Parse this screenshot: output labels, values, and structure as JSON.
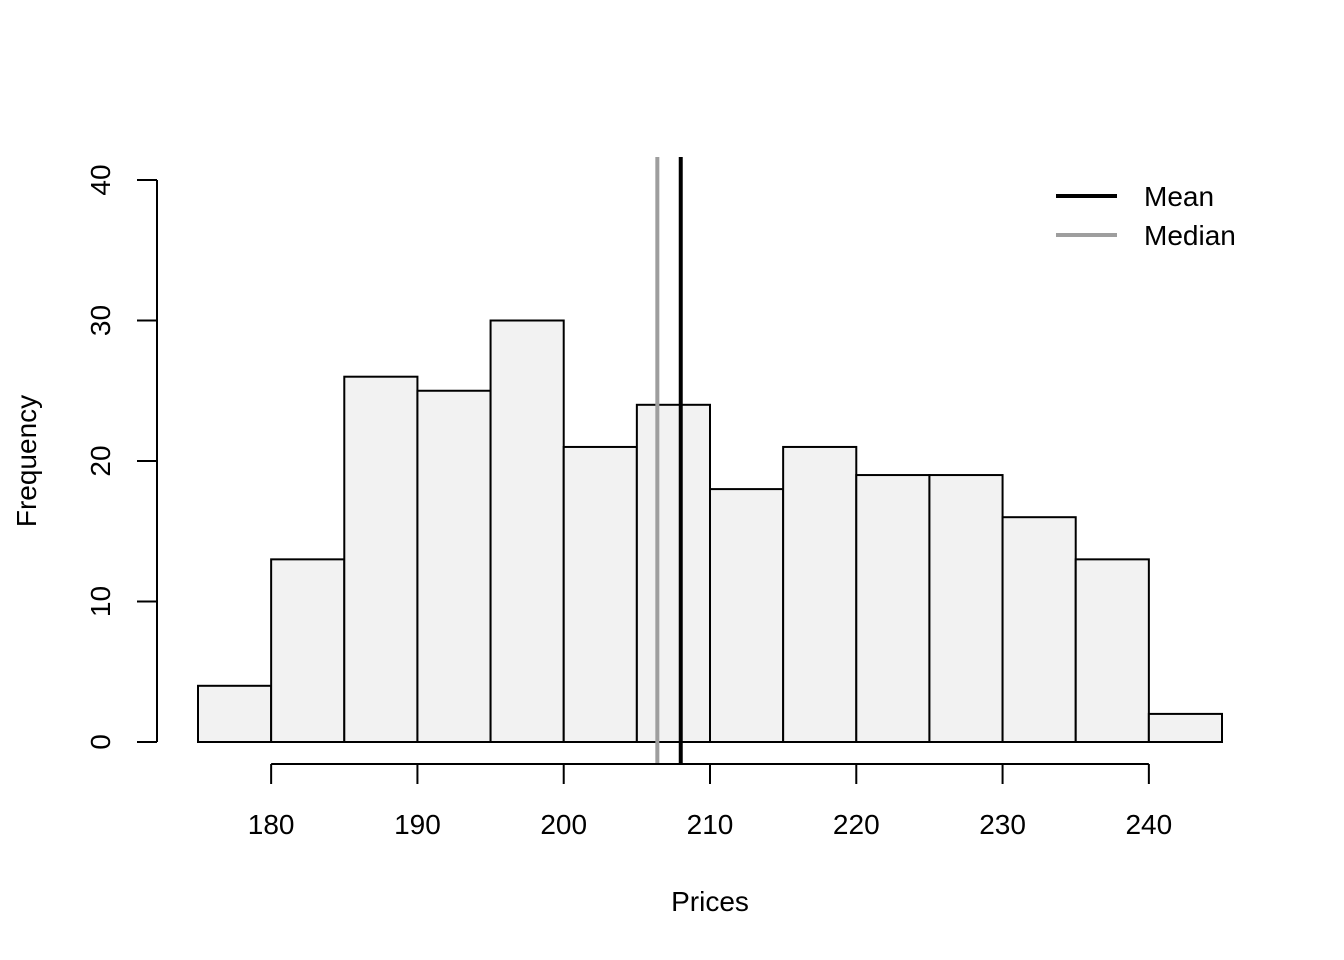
{
  "chart_data": {
    "type": "histogram",
    "xlabel": "Prices",
    "ylabel": "Frequency",
    "bin_edges": [
      175,
      180,
      185,
      190,
      195,
      200,
      205,
      210,
      215,
      220,
      225,
      230,
      235,
      240,
      245
    ],
    "counts": [
      4,
      13,
      26,
      25,
      30,
      21,
      24,
      18,
      21,
      19,
      19,
      16,
      13,
      2
    ],
    "bar_color": "#f2f2f2",
    "bar_stroke": "#000000",
    "x_ticks": [
      180,
      190,
      200,
      210,
      220,
      230,
      240
    ],
    "x_tick_labels": [
      "180",
      "190",
      "200",
      "210",
      "220",
      "230",
      "240"
    ],
    "y_ticks": [
      0,
      10,
      20,
      30,
      40
    ],
    "y_tick_labels": [
      "0",
      "10",
      "20",
      "30",
      "40"
    ],
    "xlim": [
      175,
      245
    ],
    "ylim": [
      0,
      40
    ],
    "vlines": [
      {
        "name": "Mean",
        "x": 208,
        "color": "#000000"
      },
      {
        "name": "Median",
        "x": 206.4,
        "color": "#9e9e9e"
      }
    ],
    "legend": {
      "position": "top-right",
      "entries": [
        {
          "label": "Mean",
          "color": "#000000"
        },
        {
          "label": "Median",
          "color": "#9e9e9e"
        }
      ]
    },
    "grid": false
  }
}
